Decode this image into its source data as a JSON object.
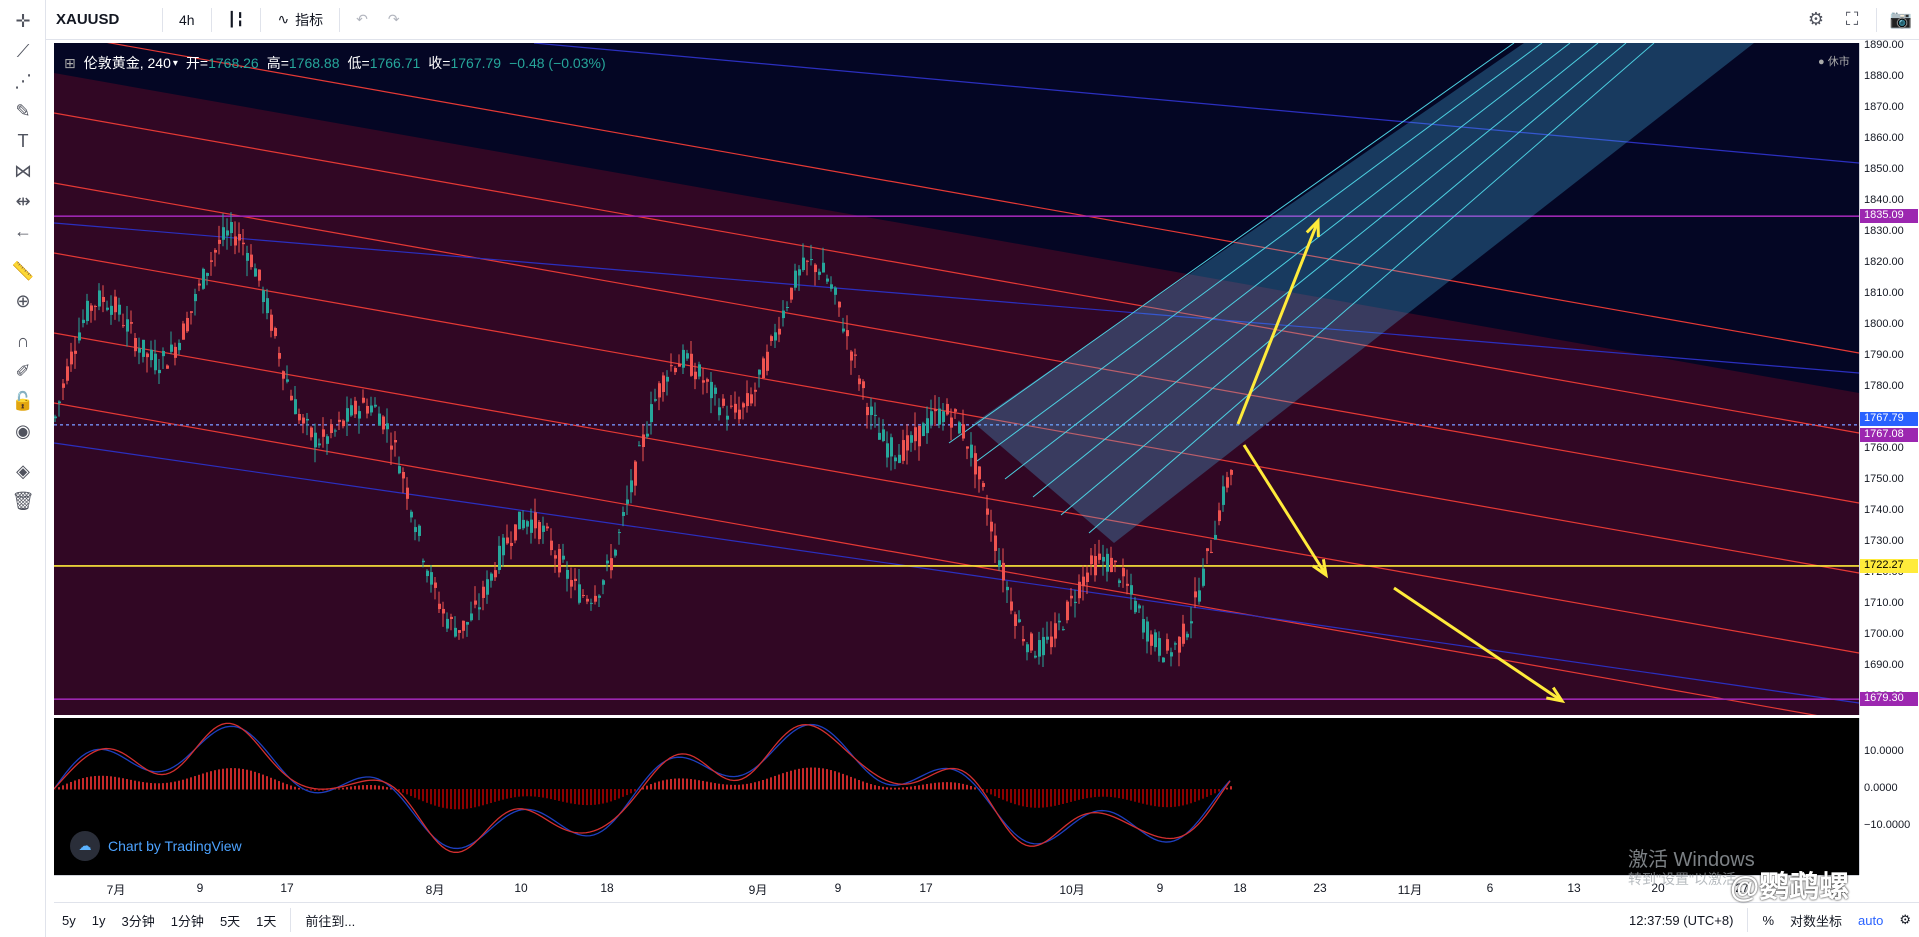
{
  "toolbar": {
    "symbol": "XAUUSD",
    "interval": "4h",
    "indicators_label": "指标",
    "icons": [
      "candles-icon",
      "indicators-icon",
      "undo-icon",
      "redo-icon",
      "settings-icon",
      "fullscreen-icon",
      "camera-icon"
    ]
  },
  "legend": {
    "title": "伦敦黄金, 240",
    "open_label": "开",
    "open": "1768.26",
    "high_label": "高",
    "high": "1768.88",
    "low_label": "低",
    "low": "1766.71",
    "close_label": "收",
    "close": "1767.79",
    "change": "−0.48 (−0.03%)"
  },
  "market_status": "休市",
  "price_axis": {
    "ticks": [
      "1890.00",
      "1880.00",
      "1870.00",
      "1860.00",
      "1850.00",
      "1840.00",
      "1830.00",
      "1820.00",
      "1810.00",
      "1800.00",
      "1790.00",
      "1780.00",
      "1770.00",
      "1760.00",
      "1750.00",
      "1740.00",
      "1730.00",
      "1720.00",
      "1710.00",
      "1700.00",
      "1690.00",
      "1680.00"
    ],
    "tags": [
      {
        "label": "1835.09",
        "color": "#9c27b0"
      },
      {
        "label": "1767.79",
        "color": "#2962ff"
      },
      {
        "label": "1767.08",
        "color": "#9c27b0"
      },
      {
        "label": "1722.27",
        "color": "#ffeb3b"
      },
      {
        "label": "1679.30",
        "color": "#9c27b0"
      }
    ]
  },
  "macd_axis": {
    "ticks": [
      "10.0000",
      "0.0000",
      "−10.0000"
    ]
  },
  "time_axis": {
    "ticks": [
      "7月",
      "9",
      "17",
      "8月",
      "10",
      "18",
      "9月",
      "9",
      "17",
      "10月",
      "9",
      "18",
      "23",
      "11月",
      "6",
      "13",
      "20",
      "27"
    ]
  },
  "bottom_bar": {
    "ranges": [
      "5y",
      "1y",
      "3分钟",
      "1分钟",
      "5天",
      "1天"
    ],
    "goto": "前往到...",
    "clock": "12:37:59 (UTC+8)",
    "percent": "%",
    "log": "对数坐标",
    "auto": "auto"
  },
  "branding": {
    "tv": "Chart by TradingView",
    "windows": "激活 Windows",
    "windows_sub": "转到\"设置\"以激活",
    "brand": "@鹦鹉螺"
  }
}
